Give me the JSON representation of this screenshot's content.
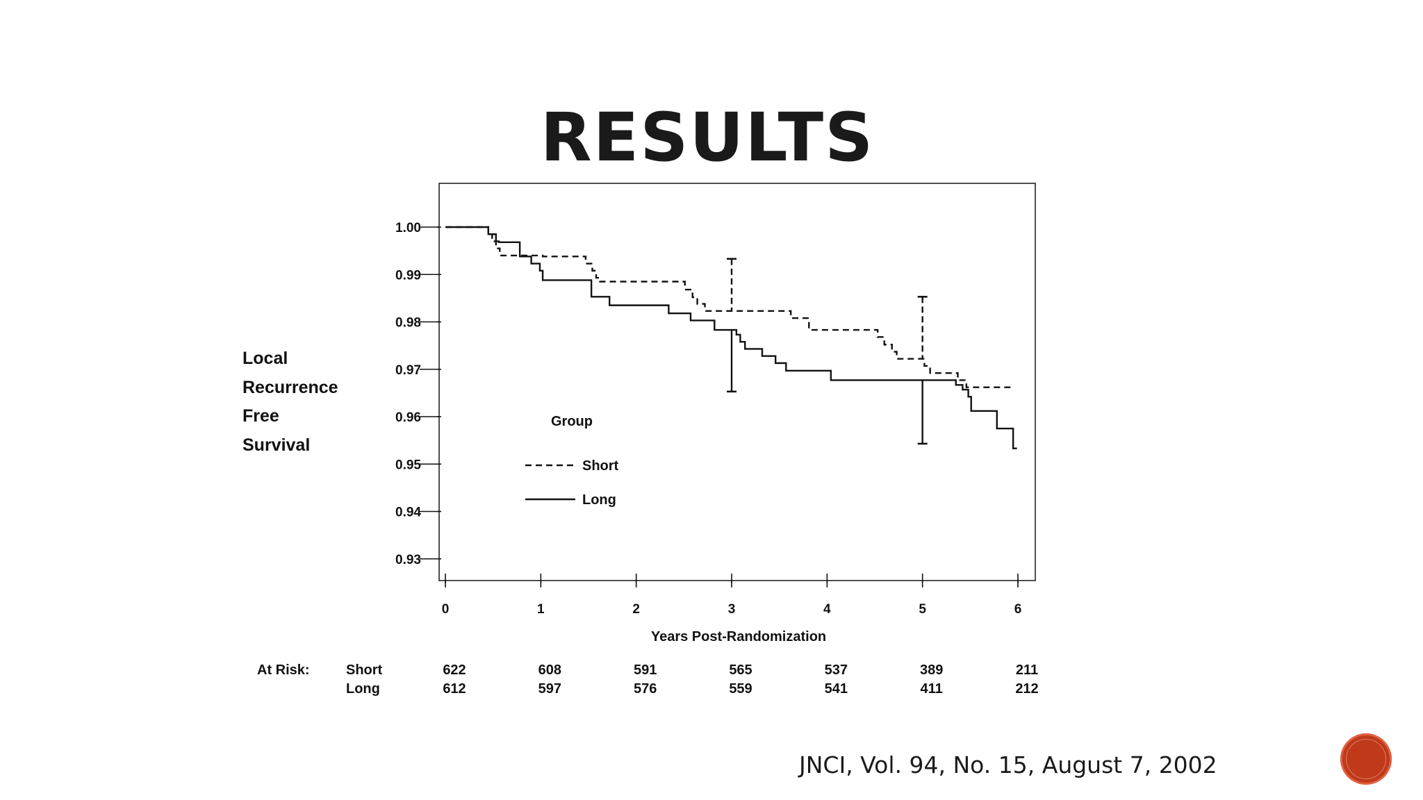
{
  "slide": {
    "title": "RESULTS",
    "citation": "JNCI, Vol. 94, No. 15, August 7, 2002"
  },
  "colors": {
    "nav_button": "#c0391b",
    "line": "#111111"
  },
  "nav_button": {
    "icon": "circle-button"
  },
  "chart_data": {
    "type": "line",
    "step": true,
    "title": "",
    "xlabel": "Years Post-Randomization",
    "ylabel_lines": [
      "Local",
      "Recurrence",
      "Free",
      "Survival"
    ],
    "xlim": [
      0,
      6
    ],
    "ylim": [
      0.9277,
      1.0
    ],
    "x_ticks": [
      "0",
      "1",
      "2",
      "3",
      "4",
      "5",
      "6"
    ],
    "y_ticks": [
      "1.00",
      "0.99",
      "0.98",
      "0.97",
      "0.96",
      "0.95",
      "0.94",
      "0.93"
    ],
    "y_tick_values": [
      1.0,
      0.99,
      0.98,
      0.97,
      0.96,
      0.95,
      0.94,
      0.93
    ],
    "grid": false,
    "legend": {
      "title": "Group",
      "position": "center-left"
    },
    "series": [
      {
        "name": "Short",
        "style": "dashed",
        "points": [
          [
            0,
            1.0
          ],
          [
            0.42,
            1.0
          ],
          [
            0.45,
            0.9985
          ],
          [
            0.49,
            0.997
          ],
          [
            0.53,
            0.9955
          ],
          [
            0.57,
            0.994
          ],
          [
            0.79,
            0.994
          ],
          [
            1.02,
            0.9938
          ],
          [
            1.43,
            0.9938
          ],
          [
            1.47,
            0.9923
          ],
          [
            1.54,
            0.9908
          ],
          [
            1.58,
            0.9893
          ],
          [
            1.62,
            0.9885
          ],
          [
            2.47,
            0.9885
          ],
          [
            2.51,
            0.9868
          ],
          [
            2.59,
            0.9852
          ],
          [
            2.64,
            0.9838
          ],
          [
            2.72,
            0.9823
          ],
          [
            3.58,
            0.9823
          ],
          [
            3.62,
            0.9808
          ],
          [
            3.77,
            0.9808
          ],
          [
            3.81,
            0.9783
          ],
          [
            4.49,
            0.9783
          ],
          [
            4.53,
            0.9768
          ],
          [
            4.6,
            0.9752
          ],
          [
            4.68,
            0.9737
          ],
          [
            4.73,
            0.9722
          ],
          [
            4.98,
            0.9722
          ],
          [
            5.02,
            0.9707
          ],
          [
            5.08,
            0.9692
          ],
          [
            5.33,
            0.9692
          ],
          [
            5.37,
            0.9677
          ],
          [
            5.46,
            0.9662
          ],
          [
            5.96,
            0.9662
          ]
        ],
        "error_bars": [
          {
            "x": 3,
            "low": 0.9823,
            "high": 0.9933
          },
          {
            "x": 5,
            "low": 0.9722,
            "high": 0.9853
          }
        ]
      },
      {
        "name": "Long",
        "style": "solid",
        "points": [
          [
            0,
            1.0
          ],
          [
            0.43,
            1.0
          ],
          [
            0.45,
            0.9985
          ],
          [
            0.53,
            0.997
          ],
          [
            0.56,
            0.9968
          ],
          [
            0.77,
            0.9968
          ],
          [
            0.78,
            0.9938
          ],
          [
            0.88,
            0.9938
          ],
          [
            0.9,
            0.9923
          ],
          [
            0.99,
            0.9908
          ],
          [
            1.02,
            0.9888
          ],
          [
            1.5,
            0.9888
          ],
          [
            1.53,
            0.9853
          ],
          [
            1.7,
            0.9853
          ],
          [
            1.72,
            0.9835
          ],
          [
            2.32,
            0.9835
          ],
          [
            2.34,
            0.9818
          ],
          [
            2.55,
            0.9818
          ],
          [
            2.57,
            0.9803
          ],
          [
            2.79,
            0.9803
          ],
          [
            2.82,
            0.9783
          ],
          [
            3.02,
            0.9783
          ],
          [
            3.05,
            0.9773
          ],
          [
            3.09,
            0.9758
          ],
          [
            3.14,
            0.9743
          ],
          [
            3.29,
            0.9743
          ],
          [
            3.32,
            0.9728
          ],
          [
            3.43,
            0.9728
          ],
          [
            3.46,
            0.9713
          ],
          [
            3.54,
            0.9713
          ],
          [
            3.57,
            0.9697
          ],
          [
            4.02,
            0.9697
          ],
          [
            4.04,
            0.9677
          ],
          [
            5.32,
            0.9677
          ],
          [
            5.35,
            0.9667
          ],
          [
            5.42,
            0.9657
          ],
          [
            5.48,
            0.9642
          ],
          [
            5.51,
            0.9612
          ],
          [
            5.76,
            0.9612
          ],
          [
            5.78,
            0.9575
          ],
          [
            5.94,
            0.9575
          ],
          [
            5.95,
            0.9533
          ],
          [
            5.99,
            0.9533
          ]
        ],
        "error_bars": [
          {
            "x": 3,
            "low": 0.9653,
            "high": 0.9783
          },
          {
            "x": 5,
            "low": 0.9543,
            "high": 0.9677
          }
        ]
      }
    ],
    "at_risk": {
      "label": "At Risk:",
      "rows": [
        {
          "group": "Short",
          "values": [
            "622",
            "608",
            "591",
            "565",
            "537",
            "389",
            "211"
          ]
        },
        {
          "group": "Long",
          "values": [
            "612",
            "597",
            "576",
            "559",
            "541",
            "411",
            "212"
          ]
        }
      ]
    }
  }
}
